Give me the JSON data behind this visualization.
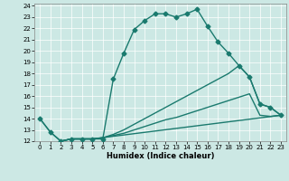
{
  "xlabel": "Humidex (Indice chaleur)",
  "bg_color": "#cce8e4",
  "grid_color": "#ffffff",
  "line_color": "#1a7a6e",
  "xlim": [
    -0.5,
    23.5
  ],
  "ylim": [
    12,
    24.2
  ],
  "xticks": [
    0,
    1,
    2,
    3,
    4,
    5,
    6,
    7,
    8,
    9,
    10,
    11,
    12,
    13,
    14,
    15,
    16,
    17,
    18,
    19,
    20,
    21,
    22,
    23
  ],
  "yticks": [
    12,
    13,
    14,
    15,
    16,
    17,
    18,
    19,
    20,
    21,
    22,
    23,
    24
  ],
  "line1_x": [
    0,
    1,
    2,
    3,
    4,
    5,
    6,
    7,
    8,
    9,
    10,
    11,
    12,
    13,
    14,
    15,
    16,
    17,
    18,
    19,
    20,
    21,
    22,
    23
  ],
  "line1_y": [
    14.0,
    12.8,
    12.0,
    12.2,
    12.2,
    12.2,
    12.2,
    17.5,
    19.8,
    21.9,
    22.7,
    23.3,
    23.3,
    23.0,
    23.3,
    23.7,
    22.2,
    20.8,
    19.8,
    18.7,
    17.7,
    15.3,
    15.0,
    14.3
  ],
  "line2_x": [
    0,
    1,
    2,
    3,
    4,
    5,
    23
  ],
  "line2_y": [
    14.0,
    12.8,
    12.0,
    12.2,
    12.2,
    12.2,
    14.3
  ],
  "line3_x": [
    2,
    3,
    4,
    5,
    6,
    7,
    8,
    9,
    10,
    11,
    12,
    13,
    14,
    15,
    16,
    17,
    18,
    19,
    20,
    21,
    22,
    23
  ],
  "line3_y": [
    12.0,
    12.2,
    12.2,
    12.2,
    12.3,
    12.5,
    12.7,
    13.0,
    13.3,
    13.6,
    13.9,
    14.1,
    14.4,
    14.7,
    15.0,
    15.3,
    15.6,
    15.9,
    16.2,
    14.3,
    14.2,
    14.3
  ],
  "line4_x": [
    2,
    3,
    4,
    5,
    6,
    7,
    8,
    9,
    10,
    11,
    12,
    13,
    14,
    15,
    16,
    17,
    18,
    19,
    20,
    21,
    22,
    23
  ],
  "line4_y": [
    12.0,
    12.2,
    12.2,
    12.2,
    12.3,
    12.6,
    13.0,
    13.5,
    14.0,
    14.5,
    15.0,
    15.5,
    16.0,
    16.5,
    17.0,
    17.5,
    18.0,
    18.7,
    17.7,
    15.3,
    15.0,
    14.3
  ],
  "marker_size": 2.5,
  "line_width": 1.0,
  "tick_fontsize": 5,
  "xlabel_fontsize": 6
}
